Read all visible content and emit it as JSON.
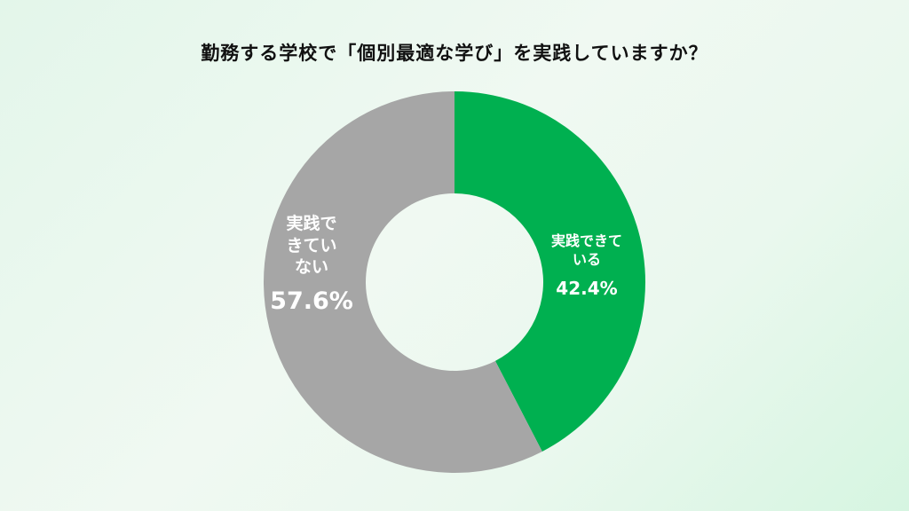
{
  "chart_data": {
    "type": "pie",
    "title": "勤務する学校で「個別最適な学び」を実践していますか？",
    "donut": true,
    "slices": [
      {
        "label": "実践できている",
        "value": 42.4,
        "value_label": "42.4%",
        "color": "#00b050"
      },
      {
        "label": "実践できていない",
        "value": 57.6,
        "value_label": "57.6%",
        "color": "#a6a6a6"
      }
    ],
    "start": "top",
    "direction": "clockwise"
  }
}
